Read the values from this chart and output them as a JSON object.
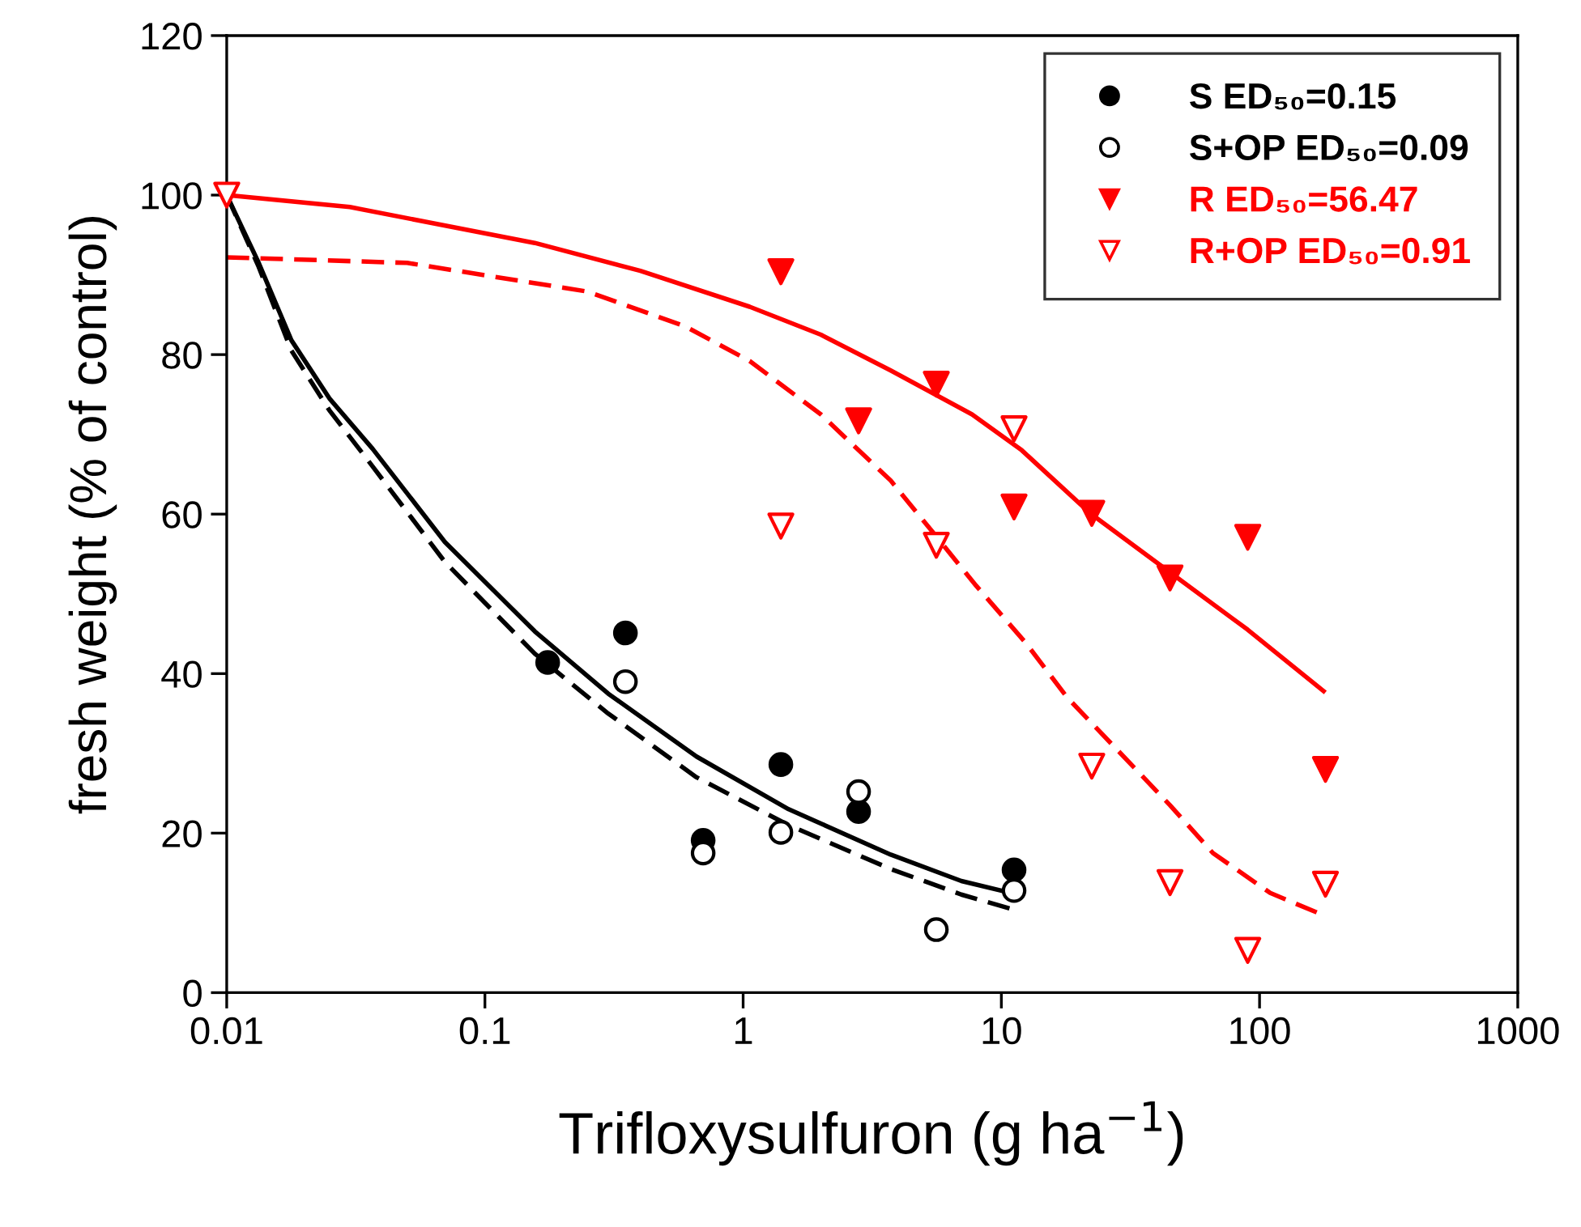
{
  "chart_data": {
    "type": "scatter",
    "xlabel": "Trifloxysulfuron (g ha$^{−1}$)",
    "ylabel": "fresh weight (% of control)",
    "log": "x",
    "xlim": [
      0.01,
      1000
    ],
    "xticks": [
      0.01,
      0.1,
      1,
      10,
      100,
      1000
    ],
    "ylim": [
      0,
      120
    ],
    "yticks": [
      0,
      20,
      40,
      60,
      80,
      100,
      120
    ],
    "grid": false,
    "legend": "top right",
    "series": [
      {
        "type": "line",
        "color": "#000000",
        "line_style": "solid",
        "marker": "none",
        "x": [
          0.01,
          0.0133,
          0.0178,
          0.025,
          0.0367,
          0.07,
          0.156,
          0.3,
          0.66,
          1.5,
          3.73,
          7,
          11.2
        ],
        "values": [
          100,
          91.5,
          81.8,
          74.5,
          68.2,
          56.5,
          45.3,
          37.5,
          29.6,
          23,
          17.3,
          14,
          12.4
        ]
      },
      {
        "type": "line",
        "color": "#000000",
        "line_style": "dashed",
        "marker": "none",
        "x": [
          0.01,
          0.0133,
          0.0178,
          0.025,
          0.0367,
          0.07,
          0.156,
          0.3,
          0.66,
          1.5,
          3.73,
          7,
          11.2
        ],
        "values": [
          100,
          91,
          80.5,
          73,
          66,
          54,
          42.5,
          35,
          27,
          21,
          15.5,
          12.3,
          10.4
        ]
      },
      {
        "type": "line",
        "color": "#ff0000",
        "line_style": "solid",
        "marker": "none",
        "x": [
          0.01,
          0.03,
          0.156,
          0.4,
          1.06,
          2,
          3.73,
          7.7,
          12,
          22.1,
          44.6,
          90,
          177
        ],
        "values": [
          100,
          98.5,
          94,
          90.5,
          86,
          82.5,
          78,
          72.5,
          68,
          60.1,
          52.8,
          45.5,
          37.8
        ]
      },
      {
        "type": "line",
        "color": "#ff0000",
        "line_style": "dashed",
        "marker": "none",
        "x": [
          0.01,
          0.05,
          0.25,
          0.6,
          1.06,
          2,
          3.73,
          5.5,
          8,
          12.4,
          18,
          28,
          45,
          66,
          110,
          177
        ],
        "values": [
          92.2,
          91.5,
          87.9,
          83.5,
          79.2,
          72.5,
          64.2,
          57.5,
          51,
          43.9,
          37,
          30.5,
          23.5,
          17.5,
          12.5,
          9.7
        ]
      },
      {
        "name": "S ED₅₀=0.15",
        "color": "#000000",
        "marker": "circle",
        "x": [
          0.175,
          0.35,
          0.7,
          1.4,
          2.8,
          11.2
        ],
        "values": [
          41.4,
          45.1,
          19.1,
          28.6,
          22.7,
          15.4
        ]
      },
      {
        "name": "S+OP ED₅₀=0.09",
        "color": "#000000",
        "marker": "circle-open",
        "x": [
          0.35,
          0.7,
          1.4,
          2.8,
          5.6,
          11.2
        ],
        "values": [
          39.0,
          17.5,
          20.1,
          25.2,
          7.9,
          12.8
        ]
      },
      {
        "name": "R ED₅₀=56.47",
        "color": "#ff0000",
        "marker": "triangle",
        "x": [
          1.4,
          2.8,
          5.6,
          11.2,
          22.4,
          45,
          90,
          180
        ],
        "values": [
          90.4,
          71.7,
          76.3,
          60.9,
          60.1,
          52.0,
          57.1,
          28.0
        ]
      },
      {
        "name": "R+OP ED₅₀=0.91",
        "color": "#ff0000",
        "marker": "triangle-open",
        "x": [
          0.01,
          1.4,
          5.6,
          11.2,
          22.4,
          45,
          90,
          180
        ],
        "values": [
          100,
          58.5,
          56.1,
          70.7,
          28.4,
          13.8,
          5.3,
          13.6
        ]
      }
    ]
  }
}
